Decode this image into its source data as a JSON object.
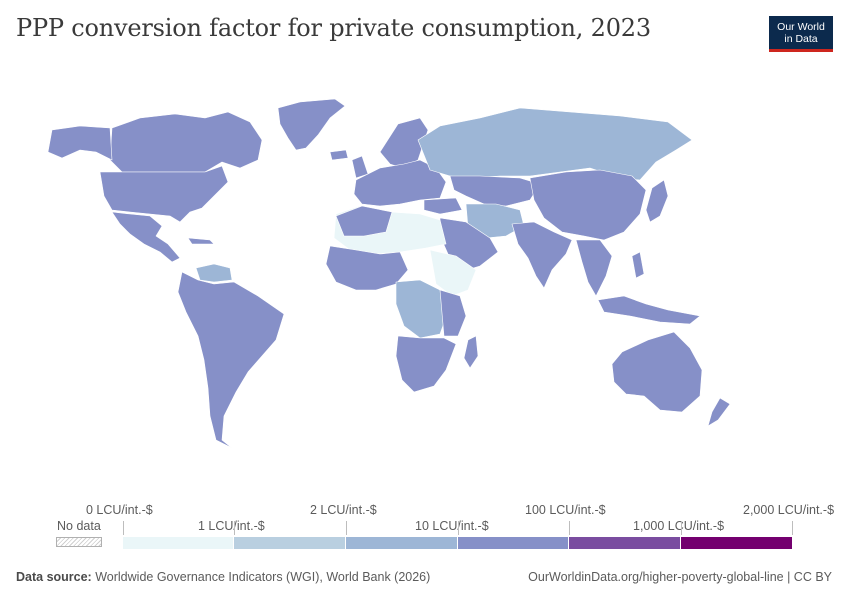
{
  "header": {
    "title": "PPP conversion factor for private consumption, 2023",
    "logo_line1": "Our World",
    "logo_line2": "in Data"
  },
  "legend": {
    "no_data_label": "No data",
    "labels_top": [
      "0 LCU/int.-$",
      "2 LCU/int.-$",
      "100 LCU/int.-$",
      "2,000 LCU/int.-$"
    ],
    "labels_bottom": [
      "1 LCU/int.-$",
      "10 LCU/int.-$",
      "1,000 LCU/int.-$"
    ],
    "bin_colors": [
      "#eaf6f8",
      "#b9cfe0",
      "#9db6d6",
      "#8690c8",
      "#7a4da0",
      "#74006f"
    ]
  },
  "colors": {
    "band_0_1": "#eaf6f8",
    "band_1_2": "#b9cfe0",
    "band_2_10": "#9db6d6",
    "band_10_100": "#8690c8",
    "band_100_1000": "#7a4da0",
    "band_1000_2000": "#74006f",
    "border": "#ffffff",
    "no_data": "#e6e6e6"
  },
  "footer": {
    "source_label": "Data source:",
    "source_text": "Worldwide Governance Indicators (WGI), World Bank (2026)",
    "url_text": "OurWorldinData.org/higher-poverty-global-line | CC BY"
  }
}
